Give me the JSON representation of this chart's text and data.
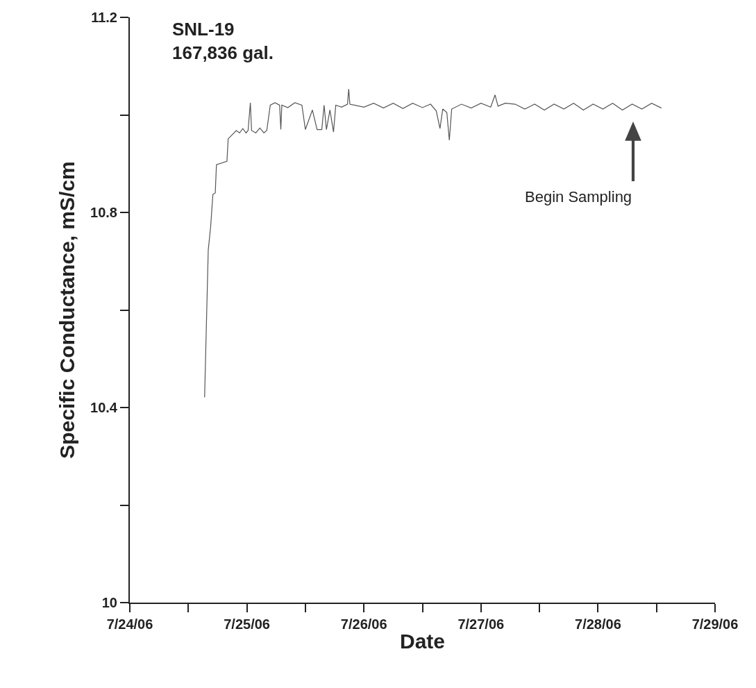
{
  "chart_data": {
    "type": "line",
    "xlabel": "Date",
    "ylabel": "Specific Conductance, mS/cm",
    "annotations": [
      "SNL-19\n167,836 gal.",
      "Begin Sampling"
    ],
    "xlim": [
      "--07-24",
      "--07-29"
    ],
    "xticks": [
      {
        "value": "--07-24",
        "label": "7/24/06"
      },
      {
        "value": "--07-24T12:00",
        "label": null
      },
      {
        "value": "--07-25",
        "label": "7/25/06"
      },
      {
        "value": "--07-25T12:00",
        "label": null
      },
      {
        "value": "--07-26",
        "label": "7/26/06"
      },
      {
        "value": "--07-26T12:00",
        "label": null
      },
      {
        "value": "--07-27",
        "label": "7/27/06"
      },
      {
        "value": "--07-27T12:00",
        "label": null
      },
      {
        "value": "--07-28",
        "label": "7/28/06"
      },
      {
        "value": "--07-28T12:00",
        "label": null
      },
      {
        "value": "--07-29",
        "label": "7/29/06"
      }
    ],
    "ylim": [
      10,
      11.2
    ],
    "yticks": [
      10,
      {
        "value": 10.2,
        "label": null
      },
      10.4,
      {
        "value": 10.6,
        "label": null
      },
      10.8,
      {
        "value": 11.0,
        "label": null
      },
      11.2
    ],
    "marker": "none",
    "line_style": "solid",
    "series": [
      {
        "color": "#555555",
        "x": [
          "--07-24T15:20",
          "--07-24T16:05",
          "--07-24T16:34",
          "--07-24T17:02",
          "--07-24T17:31",
          "--07-24T17:46",
          "--07-24T19:55",
          "--07-24T20:10",
          "--07-24T21:50",
          "--07-24T22:30",
          "--07-24T23:10",
          "--07-24T23:50",
          "--07-25T00:15",
          "--07-25T00:43",
          "--07-25T00:58",
          "--07-25T01:50",
          "--07-25T02:40",
          "--07-25T03:30",
          "--07-25T04:05",
          "--07-25T04:48",
          "--07-25T05:45",
          "--07-25T06:43",
          "--07-25T06:58",
          "--07-25T07:10",
          "--07-25T08:24",
          "--07-25T09:50",
          "--07-25T11:17",
          "--07-25T12:00",
          "--07-25T12:43",
          "--07-25T13:26",
          "--07-25T14:24",
          "--07-25T15:22",
          "--07-25T15:50",
          "--07-25T16:19",
          "--07-25T17:02",
          "--07-25T17:46",
          "--07-25T18:14",
          "--07-25T19:26",
          "--07-25T20:38",
          "--07-25T20:53",
          "--07-25T21:07",
          "--07-26T00:00",
          "--07-26T02:00",
          "--07-26T04:00",
          "--07-26T06:00",
          "--07-26T08:00",
          "--07-26T10:00",
          "--07-26T12:00",
          "--07-26T13:40",
          "--07-26T14:50",
          "--07-26T15:36",
          "--07-26T16:10",
          "--07-26T17:00",
          "--07-26T17:31",
          "--07-26T18:00",
          "--07-26T20:00",
          "--07-26T22:00",
          "--07-27T00:00",
          "--07-27T02:00",
          "--07-27T02:53",
          "--07-27T03:30",
          "--07-27T05:00",
          "--07-27T07:00",
          "--07-27T09:00",
          "--07-27T11:00",
          "--07-27T13:00",
          "--07-27T15:00",
          "--07-27T17:00",
          "--07-27T19:00",
          "--07-27T21:00",
          "--07-27T23:00",
          "--07-28T01:00",
          "--07-28T03:00",
          "--07-28T05:00",
          "--07-28T07:00",
          "--07-28T09:00",
          "--07-28T11:00",
          "--07-28T13:00"
        ],
        "values": [
          10.421,
          10.723,
          10.77,
          10.837,
          10.84,
          10.898,
          10.905,
          10.951,
          10.968,
          10.963,
          10.972,
          10.963,
          10.968,
          11.025,
          10.968,
          10.963,
          10.973,
          10.963,
          10.968,
          11.02,
          11.025,
          11.02,
          10.97,
          11.02,
          11.015,
          11.025,
          11.02,
          10.97,
          10.99,
          11.01,
          10.97,
          10.97,
          11.02,
          10.97,
          11.01,
          10.965,
          11.02,
          11.016,
          11.022,
          11.053,
          11.022,
          11.016,
          11.024,
          11.014,
          11.024,
          11.013,
          11.024,
          11.015,
          11.022,
          11.008,
          10.972,
          11.012,
          11.005,
          10.948,
          11.012,
          11.022,
          11.014,
          11.024,
          11.016,
          11.041,
          11.018,
          11.024,
          11.022,
          11.012,
          11.022,
          11.01,
          11.022,
          11.012,
          11.024,
          11.01,
          11.022,
          11.012,
          11.024,
          11.01,
          11.022,
          11.012,
          11.024,
          11.014
        ]
      }
    ]
  }
}
